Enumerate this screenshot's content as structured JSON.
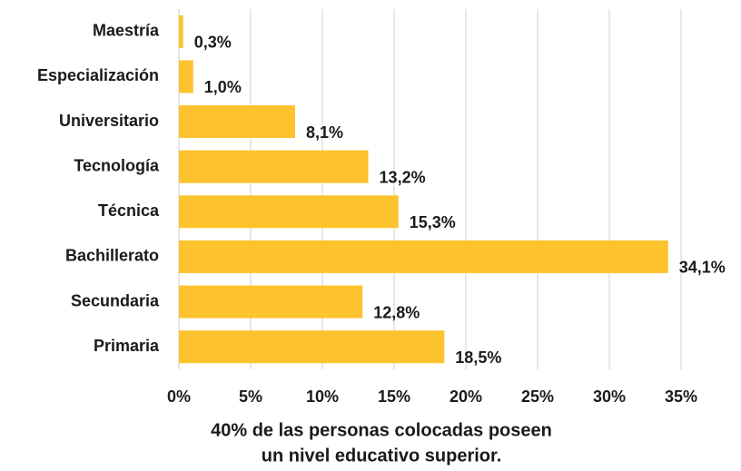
{
  "chart_data": {
    "type": "hbar",
    "categories": [
      "Maestría",
      "Especialización",
      "Universitario",
      "Tecnología",
      "Técnica",
      "Bachillerato",
      "Secundaria",
      "Primaria"
    ],
    "values": [
      0.3,
      1.0,
      8.1,
      13.2,
      15.3,
      34.1,
      12.8,
      18.5
    ],
    "value_labels": [
      "0,3%",
      "1,0%",
      "8,1%",
      "13,2%",
      "15,3%",
      "34,1%",
      "12,8%",
      "18,5%"
    ],
    "color": "#fcc32d",
    "xlim": [
      0,
      35
    ],
    "xticks": [
      {
        "value": 0,
        "label": "0%"
      },
      {
        "value": 5,
        "label": "5%"
      },
      {
        "value": 10,
        "label": "10%"
      },
      {
        "value": 15,
        "label": "15%"
      },
      {
        "value": 20,
        "label": "20%"
      },
      {
        "value": 25,
        "label": "25%"
      },
      {
        "value": 30,
        "label": "30%"
      },
      {
        "value": 35,
        "label": "35%"
      }
    ],
    "grid": true,
    "xlabel": [
      "40% de las personas colocadas poseen",
      "un nivel educativo superior."
    ]
  }
}
